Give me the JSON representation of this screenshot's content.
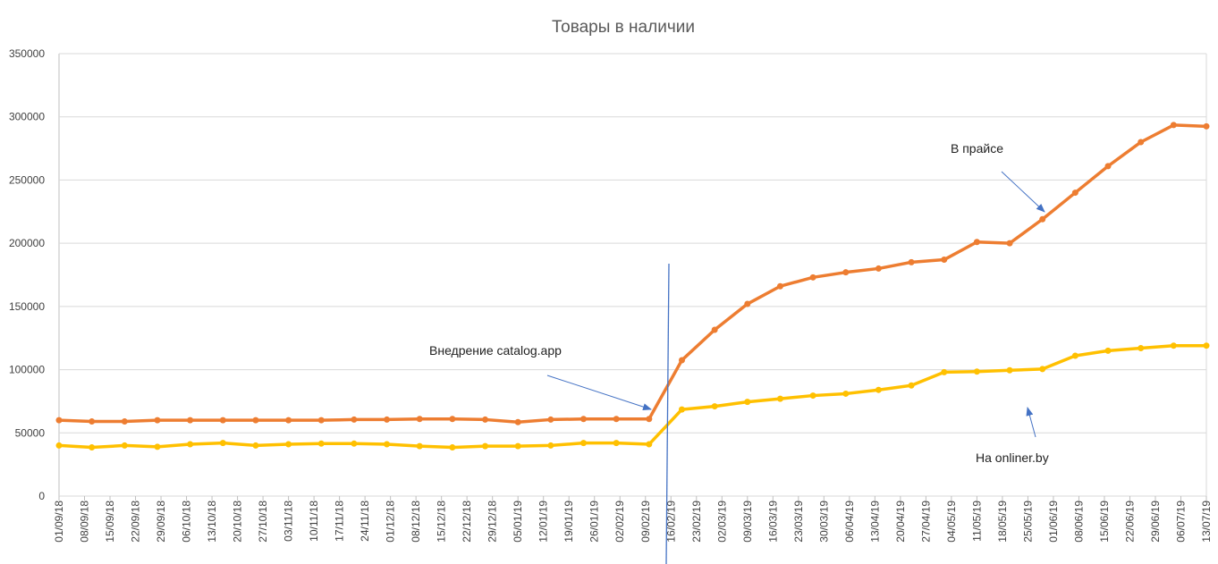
{
  "chart_data": {
    "type": "line",
    "title": "Товары в наличии",
    "x": [
      0,
      9,
      18,
      27,
      36,
      45,
      54,
      63,
      72,
      81,
      90,
      99,
      108,
      117,
      126,
      135,
      144,
      153,
      162,
      171,
      180,
      189,
      198,
      207,
      216,
      225,
      234,
      243,
      252,
      261,
      270,
      279,
      288,
      297,
      306,
      315
    ],
    "xlim": [
      0,
      315
    ],
    "xticks": [
      {
        "value": 0,
        "label": "01/09/18"
      },
      {
        "value": 7,
        "label": "08/09/18"
      },
      {
        "value": 14,
        "label": "15/09/18"
      },
      {
        "value": 21,
        "label": "22/09/18"
      },
      {
        "value": 28,
        "label": "29/09/18"
      },
      {
        "value": 35,
        "label": "06/10/18"
      },
      {
        "value": 42,
        "label": "13/10/18"
      },
      {
        "value": 49,
        "label": "20/10/18"
      },
      {
        "value": 56,
        "label": "27/10/18"
      },
      {
        "value": 63,
        "label": "03/11/18"
      },
      {
        "value": 70,
        "label": "10/11/18"
      },
      {
        "value": 77,
        "label": "17/11/18"
      },
      {
        "value": 84,
        "label": "24/11/18"
      },
      {
        "value": 91,
        "label": "01/12/18"
      },
      {
        "value": 98,
        "label": "08/12/18"
      },
      {
        "value": 105,
        "label": "15/12/18"
      },
      {
        "value": 112,
        "label": "22/12/18"
      },
      {
        "value": 119,
        "label": "29/12/18"
      },
      {
        "value": 126,
        "label": "05/01/19"
      },
      {
        "value": 133,
        "label": "12/01/19"
      },
      {
        "value": 140,
        "label": "19/01/19"
      },
      {
        "value": 147,
        "label": "26/01/19"
      },
      {
        "value": 154,
        "label": "02/02/19"
      },
      {
        "value": 161,
        "label": "09/02/19"
      },
      {
        "value": 168,
        "label": "16/02/19"
      },
      {
        "value": 175,
        "label": "23/02/19"
      },
      {
        "value": 182,
        "label": "02/03/19"
      },
      {
        "value": 189,
        "label": "09/03/19"
      },
      {
        "value": 196,
        "label": "16/03/19"
      },
      {
        "value": 203,
        "label": "23/03/19"
      },
      {
        "value": 210,
        "label": "30/03/19"
      },
      {
        "value": 217,
        "label": "06/04/19"
      },
      {
        "value": 224,
        "label": "13/04/19"
      },
      {
        "value": 231,
        "label": "20/04/19"
      },
      {
        "value": 238,
        "label": "27/04/19"
      },
      {
        "value": 245,
        "label": "04/05/19"
      },
      {
        "value": 252,
        "label": "11/05/19"
      },
      {
        "value": 259,
        "label": "18/05/19"
      },
      {
        "value": 266,
        "label": "25/05/19"
      },
      {
        "value": 273,
        "label": "01/06/19"
      },
      {
        "value": 280,
        "label": "08/06/19"
      },
      {
        "value": 287,
        "label": "15/06/19"
      },
      {
        "value": 294,
        "label": "22/06/19"
      },
      {
        "value": 301,
        "label": "29/06/19"
      },
      {
        "value": 308,
        "label": "06/07/19"
      },
      {
        "value": 315,
        "label": "13/07/19"
      }
    ],
    "ylim": [
      0,
      350000
    ],
    "yticks": [
      0,
      50000,
      100000,
      150000,
      200000,
      250000,
      300000,
      350000
    ],
    "grid": true,
    "series": [
      {
        "name": "В прайсе",
        "color": "#ED7D31",
        "values": [
          60000,
          59000,
          59000,
          60000,
          60000,
          60000,
          60000,
          60000,
          60000,
          60500,
          60500,
          61000,
          61000,
          60500,
          58500,
          60500,
          61000,
          61000,
          61000,
          107500,
          131500,
          152000,
          166000,
          173000,
          177000,
          180000,
          185000,
          187000,
          201000,
          200000,
          219000,
          240000,
          261000,
          280000,
          293500,
          292500
        ]
      },
      {
        "name": "На onliner.by",
        "color": "#FFC000",
        "values": [
          40000,
          38500,
          40000,
          39000,
          41000,
          42000,
          40000,
          41000,
          41500,
          41500,
          41000,
          39500,
          38500,
          39500,
          39500,
          40000,
          42000,
          42000,
          41000,
          68500,
          71000,
          74500,
          77000,
          79500,
          81000,
          84000,
          87500,
          98000,
          98500,
          99500,
          100500,
          111000,
          115000,
          117000,
          119000,
          119000
        ]
      }
    ],
    "annotations": [
      "Внедрение catalog.app"
    ]
  }
}
